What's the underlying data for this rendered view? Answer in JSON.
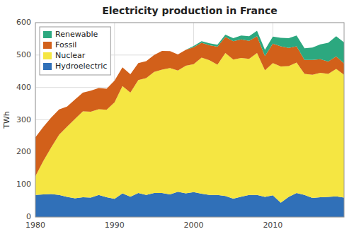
{
  "chart_data": {
    "type": "area",
    "stacked": true,
    "title": "Electricity production in France",
    "ylabel": "TWh",
    "x": [
      1980,
      1981,
      1982,
      1983,
      1984,
      1985,
      1986,
      1987,
      1988,
      1989,
      1990,
      1991,
      1992,
      1993,
      1994,
      1995,
      1996,
      1997,
      1998,
      1999,
      2000,
      2001,
      2002,
      2003,
      2004,
      2005,
      2006,
      2007,
      2008,
      2009,
      2010,
      2011,
      2012,
      2013,
      2014,
      2015,
      2016,
      2017,
      2018,
      2019
    ],
    "series": [
      {
        "name": "Hydroelectric",
        "color": "#3070b8",
        "values": [
          68,
          70,
          71,
          68,
          62,
          58,
          61,
          60,
          68,
          61,
          56,
          73,
          63,
          74,
          68,
          74,
          74,
          70,
          78,
          73,
          77,
          72,
          68,
          68,
          65,
          57,
          63,
          68,
          68,
          62,
          67,
          44,
          62,
          74,
          68,
          59,
          61,
          62,
          64,
          60
        ]
      },
      {
        "name": "Nuclear",
        "color": "#f5e642",
        "values": [
          58,
          103,
          144,
          186,
          217,
          245,
          265,
          265,
          265,
          270,
          298,
          331,
          321,
          349,
          361,
          374,
          381,
          390,
          374,
          394,
          395,
          420,
          416,
          402,
          441,
          429,
          428,
          420,
          438,
          391,
          408,
          421,
          404,
          403,
          374,
          380,
          384,
          380,
          393,
          379
        ]
      },
      {
        "name": "Fossil",
        "color": "#d2601a",
        "values": [
          120,
          105,
          92,
          78,
          62,
          60,
          58,
          65,
          65,
          65,
          67,
          58,
          57,
          52,
          52,
          52,
          58,
          52,
          50,
          49,
          52,
          46,
          46,
          56,
          50,
          57,
          57,
          56,
          52,
          44,
          60,
          62,
          56,
          50,
          43,
          46,
          42,
          38,
          39,
          35
        ]
      },
      {
        "name": "Renewable",
        "color": "#2ca87f",
        "values": [
          0,
          0,
          0,
          0,
          0,
          0,
          0,
          0,
          0,
          0,
          0,
          0,
          0,
          0,
          0,
          0,
          0,
          0,
          0,
          0,
          4,
          5,
          6,
          6,
          7,
          9,
          12,
          14,
          17,
          19,
          22,
          26,
          30,
          33,
          36,
          38,
          46,
          58,
          62,
          65
        ]
      }
    ],
    "xlim": [
      1980,
      2019
    ],
    "xticks": [
      1980,
      1990,
      2000,
      2010
    ],
    "ylim": [
      0,
      600
    ],
    "yticks": [
      0,
      100,
      200,
      300,
      400,
      500,
      600
    ],
    "grid": true,
    "legend": "upper-left"
  }
}
